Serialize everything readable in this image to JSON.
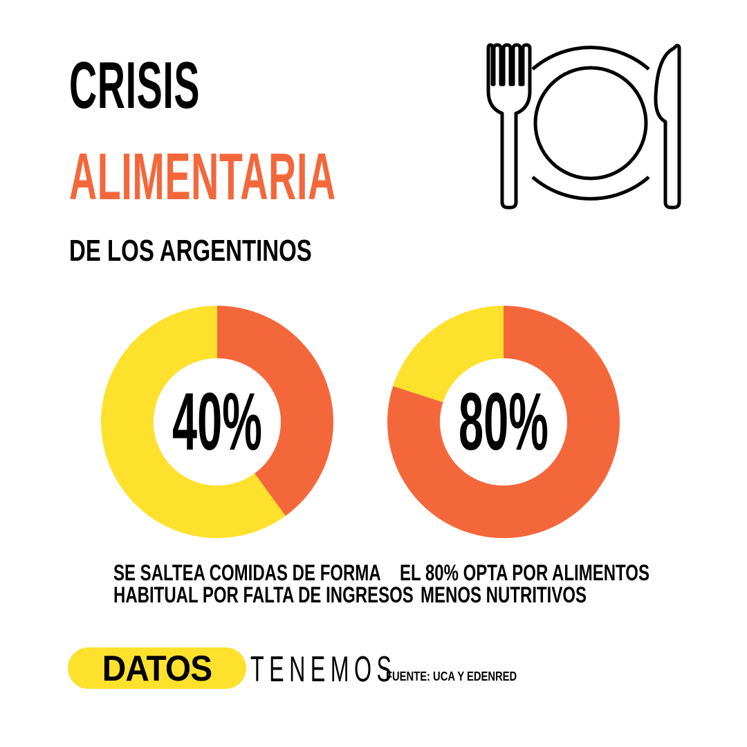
{
  "header": {
    "title_line1": "CRISIS",
    "title_line2": "ALIMENTARIA",
    "subtitle": "DE LOS ARGENTINOS"
  },
  "icon": "plate-with-fork-and-knife-icon",
  "colors": {
    "orange": "#F4673B",
    "yellow": "#FDE12D",
    "text": "#000000",
    "background": "#FFFFFF"
  },
  "chart_data": [
    {
      "type": "pie",
      "variant": "donut",
      "values": [
        40,
        60
      ],
      "colors": [
        "#F4673B",
        "#FDE12D"
      ],
      "center_label": "40%",
      "caption_line1": "SE SALTEA COMIDAS DE FORMA",
      "caption_line2": "HABITUAL POR FALTA DE INGRESOS"
    },
    {
      "type": "pie",
      "variant": "donut",
      "values": [
        80,
        20
      ],
      "colors": [
        "#F4673B",
        "#FDE12D"
      ],
      "center_label": "80%",
      "caption_line1": "EL 80% OPTA POR ALIMENTOS",
      "caption_line2": "MENOS NUTRITIVOS"
    }
  ],
  "footer": {
    "brand_pill": "DATOS",
    "brand_word": "TENEMOS",
    "source": "FUENTE:  UCA Y EDENRED"
  }
}
